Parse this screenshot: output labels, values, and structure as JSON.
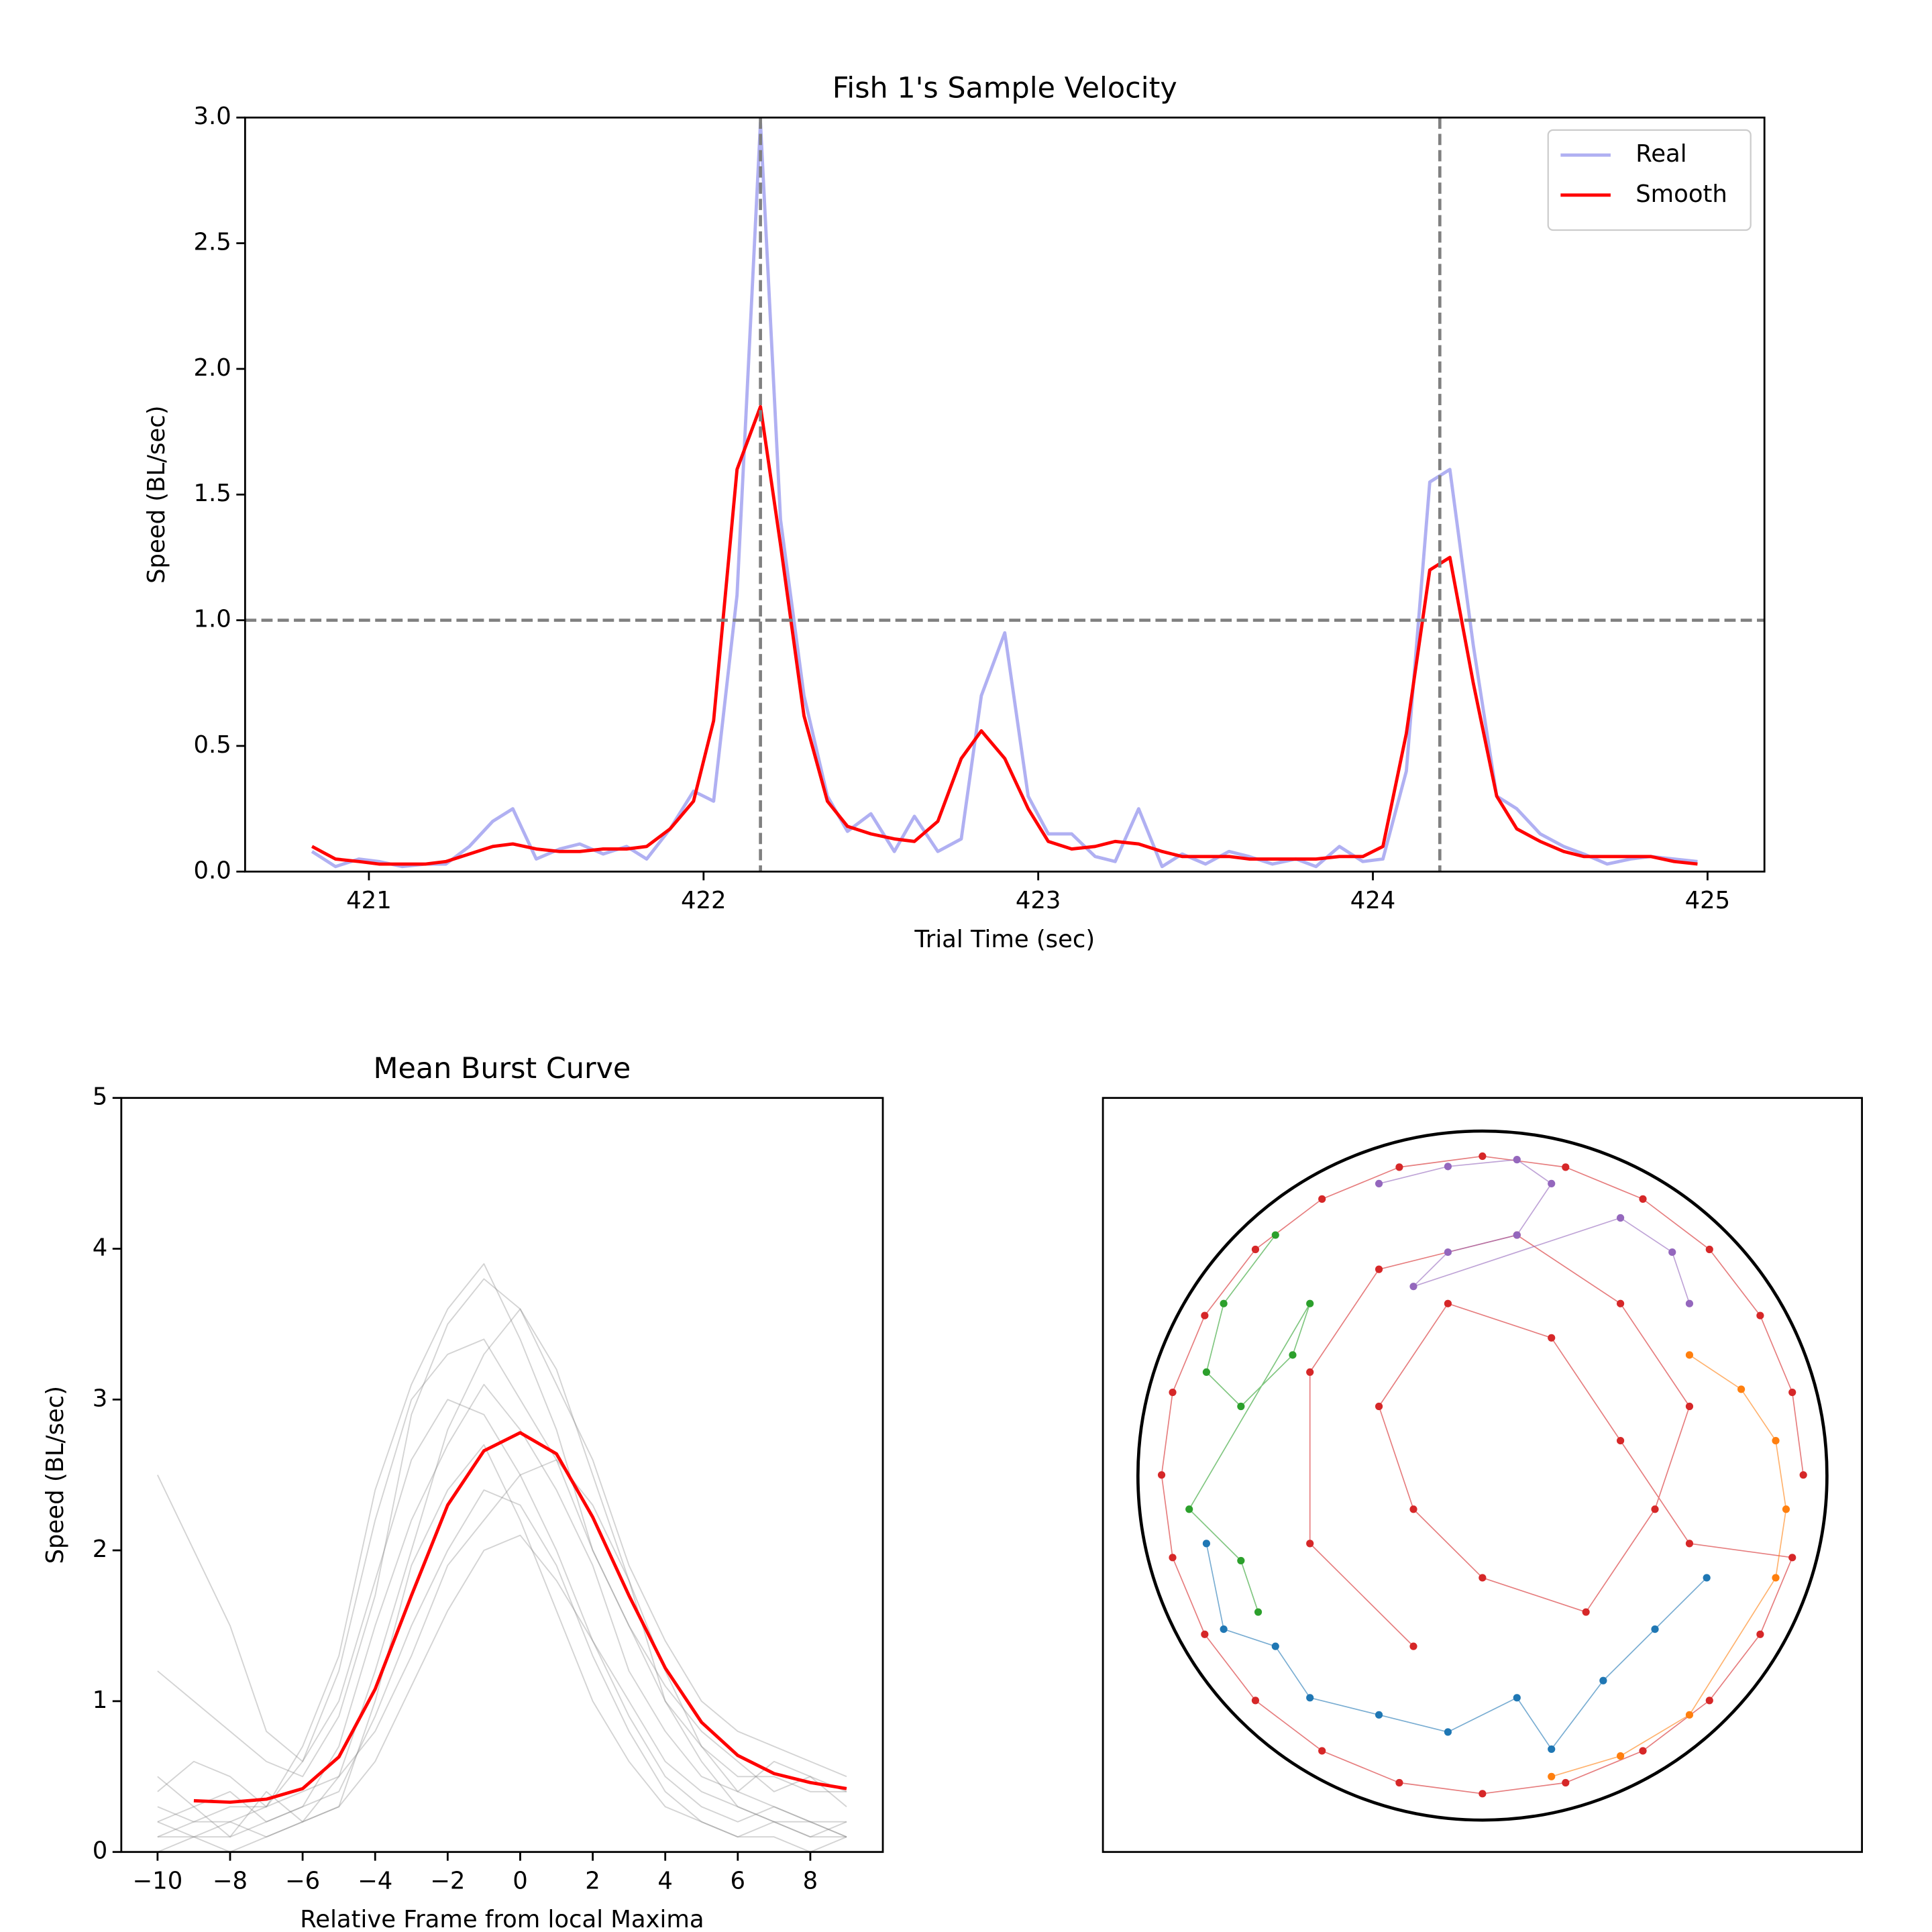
{
  "chart_data": [
    {
      "type": "line",
      "title": "Fish 1's Sample Velocity",
      "xlabel": "Trial Time (sec)",
      "ylabel": "Speed (BL/sec)",
      "xlim": [
        420.63,
        425.17
      ],
      "ylim": [
        0,
        3
      ],
      "xticks": [
        421,
        422,
        423,
        424,
        425
      ],
      "yticks": [
        {
          "value": 0,
          "label": "0.0"
        },
        0.5,
        {
          "value": 1,
          "label": "1.0"
        },
        1.5,
        {
          "value": 2,
          "label": "2.0"
        },
        2.5,
        {
          "value": 3,
          "label": "3.0"
        }
      ],
      "hlines": [
        1
      ],
      "vlines": [
        422.17,
        424.2
      ],
      "legend": "upper right",
      "x": [
        420.83,
        420.9,
        420.97,
        421.03,
        421.1,
        421.17,
        421.23,
        421.3,
        421.37,
        421.43,
        421.5,
        421.57,
        421.63,
        421.7,
        421.77,
        421.83,
        421.9,
        421.97,
        422.03,
        422.1,
        422.17,
        422.23,
        422.3,
        422.37,
        422.43,
        422.5,
        422.57,
        422.63,
        422.7,
        422.77,
        422.83,
        422.9,
        422.97,
        423.03,
        423.1,
        423.17,
        423.23,
        423.3,
        423.37,
        423.43,
        423.5,
        423.57,
        423.63,
        423.7,
        423.77,
        423.83,
        423.9,
        423.97,
        424.03,
        424.1,
        424.17,
        424.23,
        424.3,
        424.37,
        424.43,
        424.5,
        424.57,
        424.63,
        424.7,
        424.77,
        424.83,
        424.9,
        424.97
      ],
      "series": [
        {
          "name": "Real",
          "color": "#b0b0f2",
          "values": [
            0.08,
            0.02,
            0.05,
            0.04,
            0.02,
            0.03,
            0.03,
            0.1,
            0.2,
            0.25,
            0.05,
            0.09,
            0.11,
            0.07,
            0.1,
            0.05,
            0.17,
            0.32,
            0.28,
            1.1,
            2.98,
            1.4,
            0.7,
            0.3,
            0.16,
            0.23,
            0.08,
            0.22,
            0.08,
            0.13,
            0.7,
            0.95,
            0.3,
            0.15,
            0.15,
            0.06,
            0.04,
            0.25,
            0.02,
            0.07,
            0.03,
            0.08,
            0.06,
            0.03,
            0.05,
            0.02,
            0.1,
            0.04,
            0.05,
            0.4,
            1.55,
            1.6,
            0.9,
            0.3,
            0.25,
            0.15,
            0.1,
            0.07,
            0.03,
            0.05,
            0.06,
            0.05,
            0.04
          ]
        },
        {
          "name": "Smooth",
          "color": "#ff0000",
          "values": [
            0.1,
            0.05,
            0.04,
            0.03,
            0.03,
            0.03,
            0.04,
            0.07,
            0.1,
            0.11,
            0.09,
            0.08,
            0.08,
            0.09,
            0.09,
            0.1,
            0.17,
            0.28,
            0.6,
            1.6,
            1.85,
            1.3,
            0.62,
            0.28,
            0.18,
            0.15,
            0.13,
            0.12,
            0.2,
            0.45,
            0.56,
            0.45,
            0.25,
            0.12,
            0.09,
            0.1,
            0.12,
            0.11,
            0.08,
            0.06,
            0.06,
            0.06,
            0.05,
            0.05,
            0.05,
            0.05,
            0.06,
            0.06,
            0.1,
            0.55,
            1.2,
            1.25,
            0.75,
            0.3,
            0.17,
            0.12,
            0.08,
            0.06,
            0.06,
            0.06,
            0.06,
            0.04,
            0.03
          ]
        }
      ]
    },
    {
      "type": "line",
      "title": "Mean Burst Curve",
      "xlabel": "Relative Frame from local Maxima",
      "ylabel": "Speed (BL/sec)",
      "xlim": [
        -11,
        10
      ],
      "ylim": [
        0,
        5
      ],
      "xticks": [
        {
          "value": -10,
          "label": "−10"
        },
        {
          "value": -8,
          "label": "−8"
        },
        {
          "value": -6,
          "label": "−6"
        },
        {
          "value": -4,
          "label": "−4"
        },
        {
          "value": -2,
          "label": "−2"
        },
        0,
        2,
        4,
        6,
        8
      ],
      "yticks": [
        0,
        1,
        2,
        3,
        4,
        5
      ],
      "x": [
        -10,
        -9,
        -8,
        -7,
        -6,
        -5,
        -4,
        -3,
        -2,
        -1,
        0,
        1,
        2,
        3,
        4,
        5,
        6,
        7,
        8,
        9
      ],
      "series": [
        {
          "color": "#808080",
          "values": [
            0.2,
            0.3,
            0.1,
            0.4,
            0.2,
            0.5,
            1.2,
            2.0,
            2.8,
            3.3,
            3.6,
            3.2,
            2.5,
            1.8,
            1.0,
            0.6,
            0.3,
            0.2,
            0.1,
            0.2
          ]
        },
        {
          "color": "#808080",
          "values": [
            0.1,
            0.2,
            0.2,
            0.3,
            0.6,
            1.0,
            1.8,
            2.6,
            3.0,
            2.9,
            2.5,
            2.0,
            1.4,
            0.9,
            0.5,
            0.3,
            0.2,
            0.3,
            0.2,
            0.1
          ]
        },
        {
          "color": "#808080",
          "values": [
            0.5,
            0.3,
            0.4,
            0.2,
            0.3,
            0.7,
            1.5,
            2.2,
            2.7,
            3.1,
            2.8,
            2.4,
            1.9,
            1.2,
            0.8,
            0.5,
            0.4,
            0.6,
            0.5,
            0.3
          ]
        },
        {
          "color": "#808080",
          "values": [
            0.0,
            0.1,
            0.1,
            0.2,
            0.3,
            0.4,
            0.9,
            1.5,
            2.0,
            2.4,
            2.3,
            1.9,
            1.3,
            0.8,
            0.4,
            0.2,
            0.1,
            0.1,
            0.0,
            0.1
          ]
        },
        {
          "color": "#808080",
          "values": [
            1.2,
            1.0,
            0.8,
            0.6,
            0.5,
            0.9,
            1.7,
            2.9,
            3.5,
            3.8,
            3.6,
            3.1,
            2.6,
            1.9,
            1.4,
            1.0,
            0.8,
            0.7,
            0.6,
            0.5
          ]
        },
        {
          "color": "#808080",
          "values": [
            0.3,
            0.2,
            0.3,
            0.3,
            0.4,
            0.5,
            0.8,
            1.3,
            1.9,
            2.2,
            2.5,
            2.6,
            2.3,
            1.8,
            1.2,
            0.7,
            0.4,
            0.3,
            0.2,
            0.2
          ]
        },
        {
          "color": "#808080",
          "values": [
            0.2,
            0.1,
            0.2,
            0.1,
            0.2,
            0.3,
            1.0,
            1.9,
            2.4,
            2.7,
            2.2,
            1.6,
            1.0,
            0.6,
            0.3,
            0.2,
            0.1,
            0.2,
            0.1,
            0.1
          ]
        },
        {
          "color": "#808080",
          "values": [
            0.4,
            0.6,
            0.5,
            0.3,
            0.7,
            1.3,
            2.4,
            3.1,
            3.6,
            3.9,
            3.4,
            2.8,
            2.0,
            1.5,
            1.1,
            0.8,
            0.6,
            0.4,
            0.5,
            0.4
          ]
        },
        {
          "color": "#808080",
          "values": [
            0.1,
            0.1,
            0.0,
            0.1,
            0.2,
            0.3,
            0.6,
            1.1,
            1.6,
            2.0,
            2.1,
            1.8,
            1.4,
            1.0,
            0.6,
            0.4,
            0.3,
            0.2,
            0.2,
            0.1
          ]
        },
        {
          "color": "#808080",
          "values": [
            2.5,
            2.0,
            1.5,
            0.8,
            0.6,
            1.2,
            2.2,
            3.0,
            3.3,
            3.4,
            3.0,
            2.6,
            2.0,
            1.5,
            1.0,
            0.7,
            0.5,
            0.5,
            0.4,
            0.4
          ]
        },
        {
          "color": "#ff0000",
          "x": [
            -9,
            -8,
            -7,
            -6,
            -5,
            -4,
            -3,
            -2,
            -1,
            0,
            1,
            2,
            3,
            4,
            5,
            6,
            7,
            8,
            9
          ],
          "values": [
            0.34,
            0.33,
            0.35,
            0.42,
            0.63,
            1.08,
            1.7,
            2.3,
            2.66,
            2.78,
            2.64,
            2.22,
            1.7,
            1.22,
            0.86,
            0.64,
            0.52,
            0.46,
            0.42
          ]
        }
      ]
    },
    {
      "type": "scatter",
      "xlim": [
        -1.1,
        1.1
      ],
      "ylim": [
        -1.1,
        1.1
      ],
      "series": [
        {
          "color": "#d62728",
          "x": [
            0.93,
            0.898,
            0.805,
            0.658,
            0.465,
            0.241,
            0,
            -0.241,
            -0.465,
            -0.658,
            -0.805,
            -0.898,
            -0.93,
            -0.898,
            -0.805,
            -0.658,
            -0.465,
            -0.241,
            0,
            0.241,
            0.465,
            0.658,
            0.805,
            0.898,
            0.6,
            0.4,
            0.2,
            -0.1,
            -0.3,
            -0.2,
            0,
            0.3,
            0.5,
            0.6,
            0.4,
            0.1,
            -0.3,
            -0.5,
            -0.5,
            -0.2
          ],
          "values": [
            0,
            0.241,
            0.465,
            0.658,
            0.805,
            0.898,
            0.93,
            0.898,
            0.805,
            0.658,
            0.465,
            0.241,
            0,
            -0.241,
            -0.465,
            -0.658,
            -0.805,
            -0.898,
            -0.93,
            -0.898,
            -0.805,
            -0.658,
            -0.465,
            -0.241,
            -0.2,
            0.1,
            0.4,
            0.5,
            0.2,
            -0.1,
            -0.3,
            -0.4,
            -0.1,
            0.2,
            0.5,
            0.7,
            0.6,
            0.3,
            -0.2,
            -0.5
          ]
        },
        {
          "color": "#9467bd",
          "x": [
            -0.3,
            -0.1,
            0.1,
            0.2,
            0.1,
            -0.1,
            -0.2,
            0.4,
            0.55,
            0.6
          ],
          "values": [
            0.85,
            0.9,
            0.92,
            0.85,
            0.7,
            0.65,
            0.55,
            0.75,
            0.65,
            0.5
          ]
        },
        {
          "color": "#2ca02c",
          "x": [
            -0.6,
            -0.75,
            -0.8,
            -0.7,
            -0.55,
            -0.5,
            -0.85,
            -0.7,
            -0.65
          ],
          "values": [
            0.7,
            0.5,
            0.3,
            0.2,
            0.35,
            0.5,
            -0.1,
            -0.25,
            -0.4
          ]
        },
        {
          "color": "#1f77b4",
          "x": [
            -0.8,
            -0.75,
            -0.6,
            -0.5,
            -0.3,
            -0.1,
            0.1,
            0.2,
            0.35,
            0.5,
            0.65
          ],
          "values": [
            -0.2,
            -0.45,
            -0.5,
            -0.65,
            -0.7,
            -0.75,
            -0.65,
            -0.8,
            -0.6,
            -0.45,
            -0.3
          ]
        },
        {
          "color": "#ff7f0e",
          "x": [
            0.6,
            0.75,
            0.85,
            0.88,
            0.85,
            0.6,
            0.4,
            0.2
          ],
          "values": [
            0.35,
            0.25,
            0.1,
            -0.1,
            -0.3,
            -0.7,
            -0.82,
            -0.88
          ]
        }
      ]
    }
  ]
}
